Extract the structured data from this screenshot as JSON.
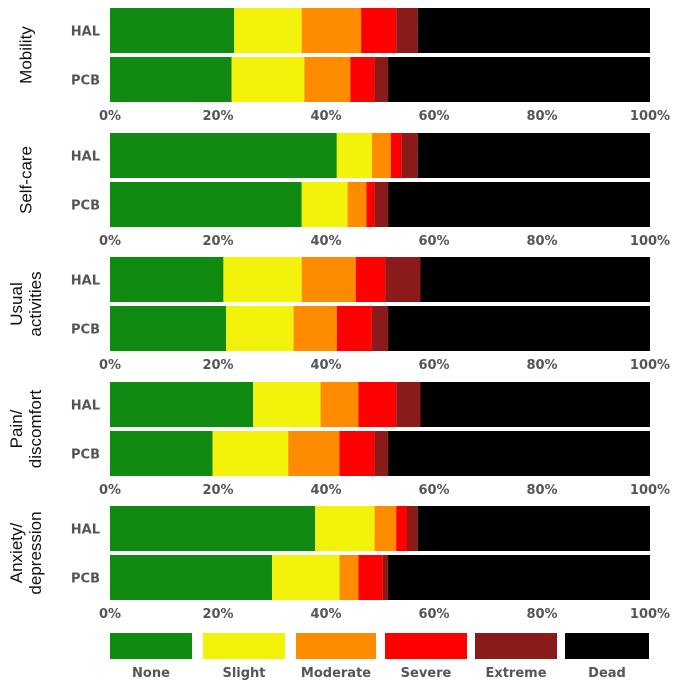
{
  "chart_data": {
    "type": "bar",
    "orientation": "horizontal",
    "stacked": true,
    "xlim": [
      0,
      100
    ],
    "x_ticks": [
      "0%",
      "20%",
      "40%",
      "60%",
      "80%",
      "100%"
    ],
    "categories": [
      "HAL",
      "PCB"
    ],
    "series_names": [
      "None",
      "Slight",
      "Moderate",
      "Severe",
      "Extreme",
      "Dead"
    ],
    "colors": [
      "#118a11",
      "#f2f20a",
      "#ff8c00",
      "#ff0000",
      "#8b1a1a",
      "#000000"
    ],
    "legend_position": "bottom",
    "facets": [
      {
        "label_lines": [
          "Mobility"
        ],
        "bars": [
          {
            "category": "HAL",
            "values": [
              23,
              12.5,
              11,
              6.5,
              4,
              43
            ]
          },
          {
            "category": "PCB",
            "values": [
              22.5,
              13.5,
              8.5,
              4.5,
              2.5,
              48.5
            ]
          }
        ]
      },
      {
        "label_lines": [
          "Self-care"
        ],
        "bars": [
          {
            "category": "HAL",
            "values": [
              42,
              6.5,
              3.5,
              2,
              3,
              43
            ]
          },
          {
            "category": "PCB",
            "values": [
              35.5,
              8.5,
              3.5,
              1.5,
              2.5,
              48.5
            ]
          }
        ]
      },
      {
        "label_lines": [
          "Usual",
          "activities"
        ],
        "bars": [
          {
            "category": "HAL",
            "values": [
              21,
              14.5,
              10,
              5.5,
              6.5,
              42.5
            ]
          },
          {
            "category": "PCB",
            "values": [
              21.5,
              12.5,
              8,
              6.5,
              3,
              48.5
            ]
          }
        ]
      },
      {
        "label_lines": [
          "Pain/",
          "discomfort"
        ],
        "bars": [
          {
            "category": "HAL",
            "values": [
              26.5,
              12.5,
              7,
              7,
              4.5,
              42.5
            ]
          },
          {
            "category": "PCB",
            "values": [
              19,
              14,
              9.5,
              6.5,
              2.5,
              48.5
            ]
          }
        ]
      },
      {
        "label_lines": [
          "Anxiety/",
          "depression"
        ],
        "bars": [
          {
            "category": "HAL",
            "values": [
              38,
              11,
              4,
              2,
              2,
              43
            ]
          },
          {
            "category": "PCB",
            "values": [
              30,
              12.5,
              3.5,
              4.5,
              1,
              48.5
            ]
          }
        ]
      }
    ]
  }
}
